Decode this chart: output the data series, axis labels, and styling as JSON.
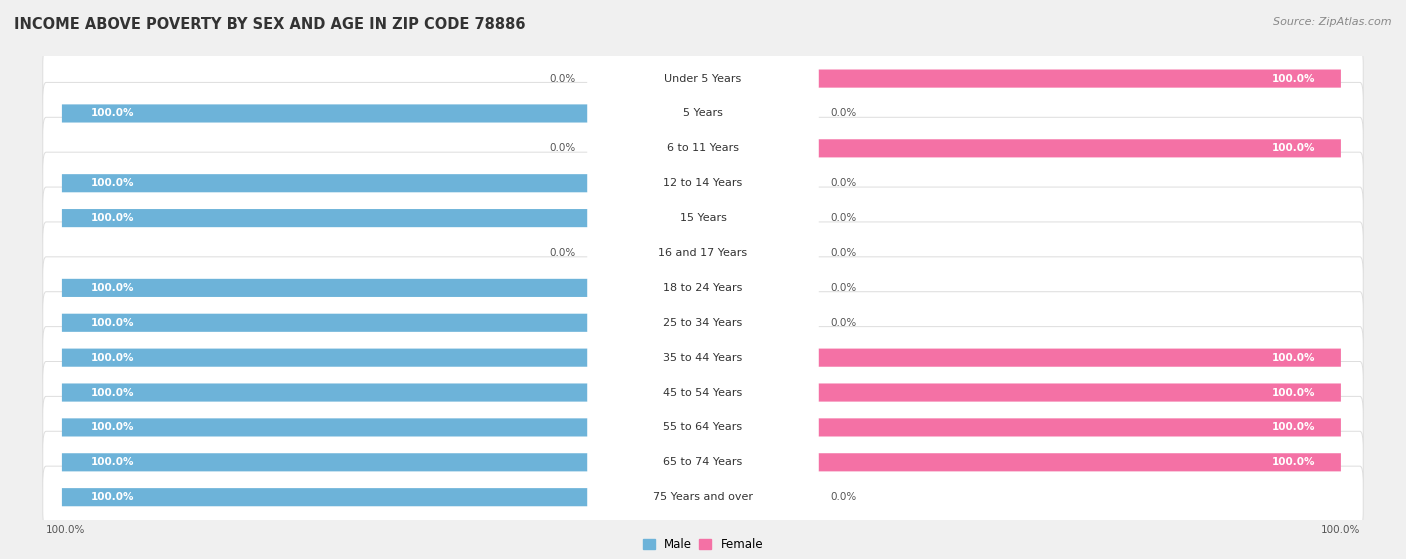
{
  "title": "INCOME ABOVE POVERTY BY SEX AND AGE IN ZIP CODE 78886",
  "source": "Source: ZipAtlas.com",
  "age_groups": [
    "Under 5 Years",
    "5 Years",
    "6 to 11 Years",
    "12 to 14 Years",
    "15 Years",
    "16 and 17 Years",
    "18 to 24 Years",
    "25 to 34 Years",
    "35 to 44 Years",
    "45 to 54 Years",
    "55 to 64 Years",
    "65 to 74 Years",
    "75 Years and over"
  ],
  "male_values": [
    0.0,
    100.0,
    0.0,
    100.0,
    100.0,
    0.0,
    100.0,
    100.0,
    100.0,
    100.0,
    100.0,
    100.0,
    100.0
  ],
  "female_values": [
    100.0,
    0.0,
    100.0,
    0.0,
    0.0,
    0.0,
    0.0,
    0.0,
    100.0,
    100.0,
    100.0,
    100.0,
    0.0
  ],
  "male_color": "#6db3d9",
  "female_color": "#f471a5",
  "male_color_light": "#b8d9ed",
  "female_color_light": "#f9bbd5",
  "row_bg_color": "#ffffff",
  "row_border_color": "#dddddd",
  "outer_bg_color": "#f0f0f0",
  "title_fontsize": 10.5,
  "source_fontsize": 8,
  "label_fontsize": 8,
  "value_fontsize": 7.5,
  "legend_fontsize": 8.5,
  "x_axis_label_left": "100.0%",
  "x_axis_label_right": "100.0%"
}
